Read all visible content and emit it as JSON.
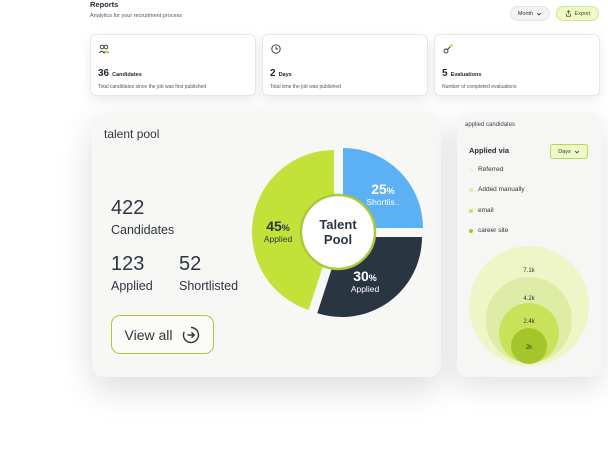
{
  "header": {
    "title": "Reports",
    "subtitle": "Analytics for your recruitment process",
    "month_label": "Month",
    "export_label": "Export"
  },
  "stats": [
    {
      "icon": "candidates-icon",
      "value": "36",
      "unit": "Candidates",
      "desc": "Total candidates since the job was first published"
    },
    {
      "icon": "clock-icon",
      "value": "2",
      "unit": "Days",
      "desc": "Total time the job was published"
    },
    {
      "icon": "evaluation-icon",
      "value": "5",
      "unit": "Evaluations",
      "desc": "Number of completed evaluations"
    }
  ],
  "talent_pool": {
    "title": "talent pool",
    "candidates_value": "422",
    "candidates_label": "Candidates",
    "applied_value": "123",
    "applied_label": "Applied",
    "shortlisted_value": "52",
    "shortlisted_label": "Shortlisted",
    "view_all_label": "View all",
    "center_line1": "Talent",
    "center_line2": "Pool"
  },
  "chart_data": [
    {
      "type": "pie",
      "slices": [
        {
          "label": "Shortlis..",
          "value": 25,
          "color": "#5cb0f4"
        },
        {
          "label": "Applied",
          "value": 30,
          "color": "#2a3542"
        },
        {
          "label": "Applied",
          "value": 45,
          "color": "#c2e23a"
        }
      ],
      "value_labels": [
        "25",
        "30",
        "45"
      ],
      "unit": "%"
    },
    {
      "type": "bubble",
      "title": "applied candidates",
      "subtitle": "Applied via",
      "values": [
        "7.1k",
        "4.2k",
        "2.4k",
        "2k"
      ],
      "series": [
        {
          "name": "Referred",
          "color": "#eef5c7"
        },
        {
          "name": "Added manually",
          "color": "#dfeca6"
        },
        {
          "name": "email",
          "color": "#c9e25a"
        },
        {
          "name": "career site",
          "color": "#a5c62a"
        }
      ]
    }
  ],
  "side": {
    "title": "applied candidates",
    "via_label": "Applied via",
    "days_label": "Days"
  }
}
